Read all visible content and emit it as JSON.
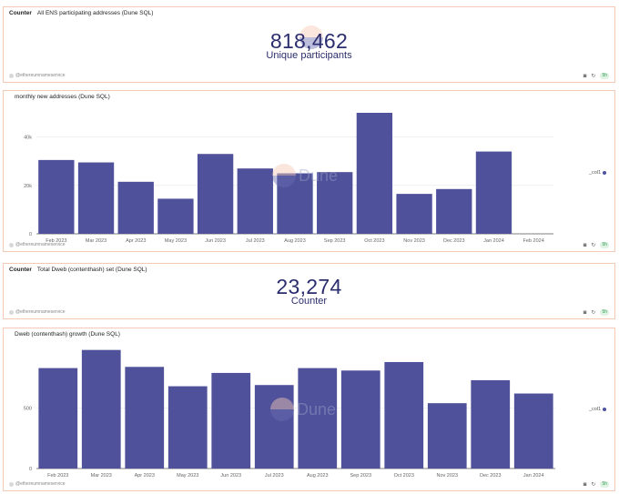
{
  "colors": {
    "bar": "#4f519b",
    "counter_text": "#2b2d6e",
    "panel_border": "#f6c8b6"
  },
  "footer": {
    "author": "@ethereumnameservice",
    "badge": "5h",
    "icons": [
      "camera-icon",
      "refresh-icon"
    ]
  },
  "watermark": {
    "text": "Dune"
  },
  "panels": [
    {
      "kind": "Counter",
      "title": "All ENS participating addresses (Dune SQL)",
      "value": "818,462",
      "label": "Unique participants"
    },
    {
      "kind": "",
      "title": "monthly new addresses (Dune SQL)",
      "legend": "_col1"
    },
    {
      "kind": "Counter",
      "title": "Total Dweb (contenthash) set (Dune SQL)",
      "value": "23,274",
      "label": "Counter"
    },
    {
      "kind": "",
      "title": "Dweb (contenthash) growth (Dune SQL)",
      "legend": "_col1"
    }
  ],
  "chart_data": [
    {
      "type": "bar",
      "title": "monthly new addresses (Dune SQL)",
      "categories": [
        "Feb 2023",
        "Mar 2023",
        "Apr 2023",
        "May 2023",
        "Jun 2023",
        "Jul 2023",
        "Aug 2023",
        "Sep 2023",
        "Oct 2023",
        "Nov 2023",
        "Dec 2023",
        "Jan 2024",
        "Feb 2024"
      ],
      "values": [
        30500,
        29500,
        21500,
        14500,
        33000,
        27000,
        25000,
        25500,
        50000,
        16500,
        18500,
        34000,
        null
      ],
      "ylim": [
        0,
        50000
      ],
      "yticks": [
        0,
        20000,
        40000
      ],
      "ytick_labels": [
        "0",
        "20k",
        "40k"
      ],
      "legend": "_col1",
      "grid": true
    },
    {
      "type": "bar",
      "title": "Dweb (contenthash) growth (Dune SQL)",
      "categories": [
        "Feb 2023",
        "Mar 2023",
        "Apr 2023",
        "May 2023",
        "Jun 2023",
        "Jul 2023",
        "Aug 2023",
        "Sep 2023",
        "Oct 2023",
        "Nov 2023",
        "Dec 2023",
        "Jan 2024"
      ],
      "values": [
        830,
        980,
        840,
        680,
        790,
        690,
        830,
        810,
        880,
        540,
        730,
        620
      ],
      "ylim": [
        0,
        1000
      ],
      "yticks": [
        0,
        500
      ],
      "ytick_labels": [
        "0",
        "500"
      ],
      "legend": "_col1",
      "grid": true
    }
  ]
}
